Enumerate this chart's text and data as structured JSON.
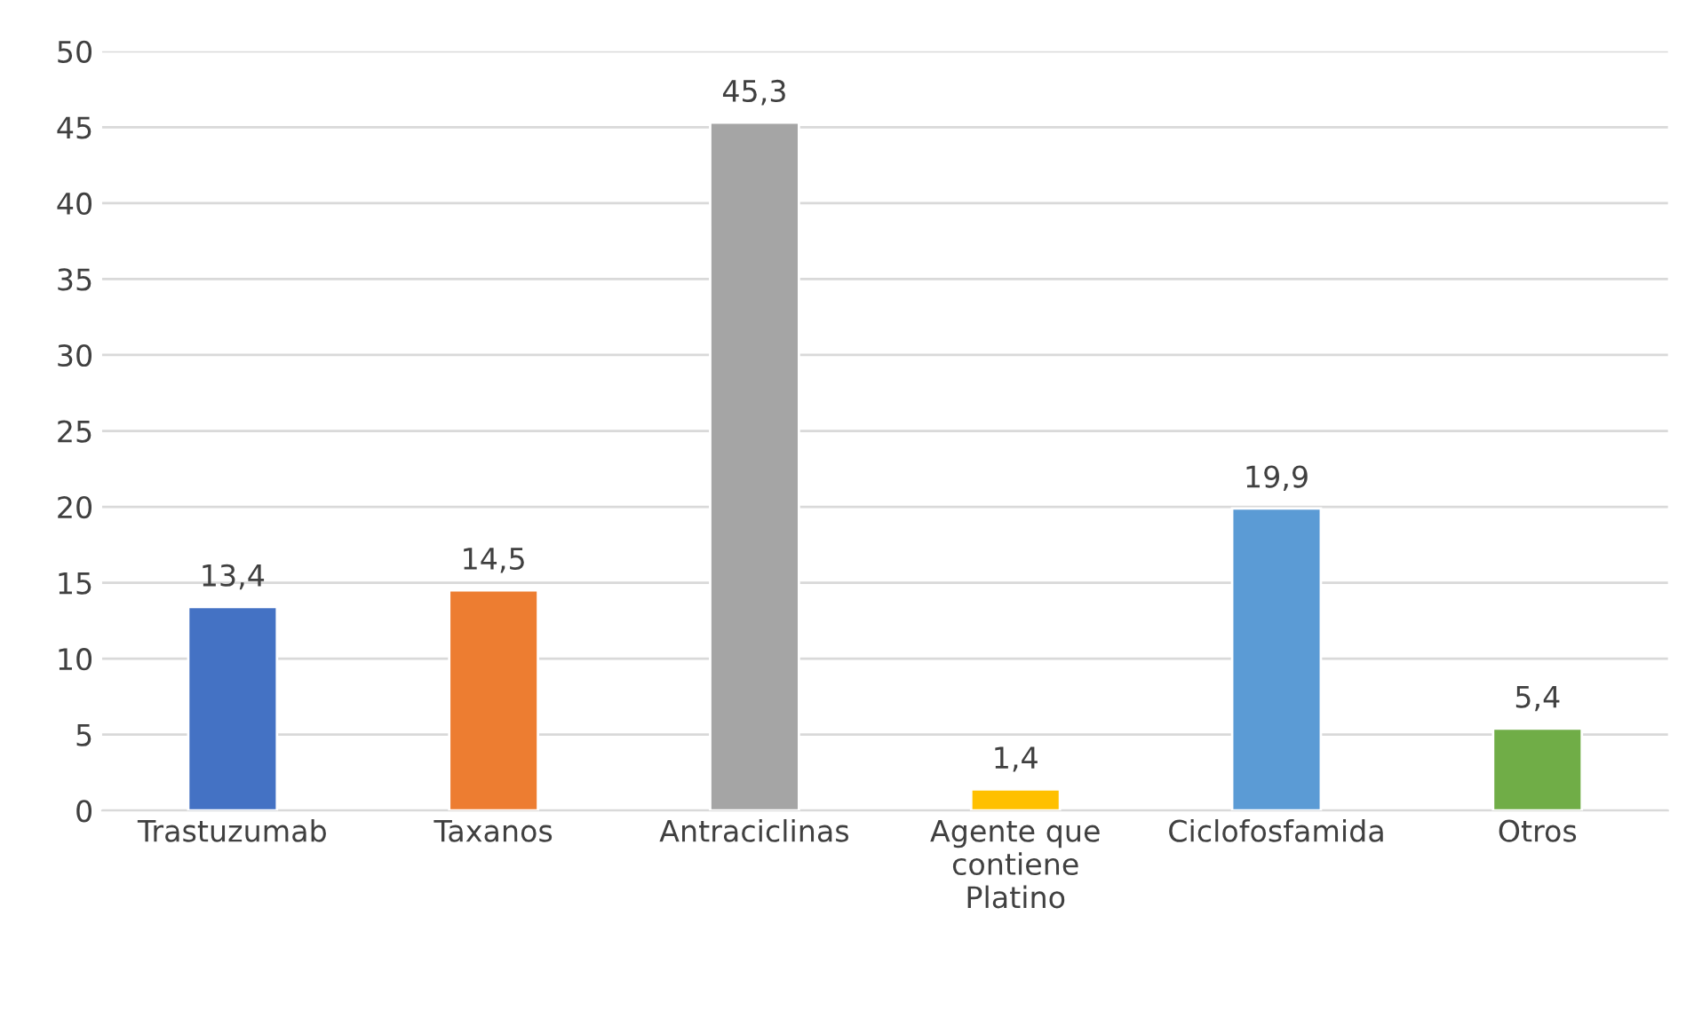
{
  "chart_data": {
    "type": "bar",
    "categories": [
      "Trastuzumab",
      "Taxanos",
      "Antraciclinas",
      "Agente que\ncontiene\nPlatino",
      "Ciclofosfamida",
      "Otros"
    ],
    "values": [
      13.4,
      14.5,
      45.3,
      1.4,
      19.9,
      5.4
    ],
    "colors": [
      "#4472c4",
      "#ed7d31",
      "#a5a5a5",
      "#ffc000",
      "#5b9bd5",
      "#70ad47"
    ],
    "value_labels": [
      "13,4",
      "14,5",
      "45,3",
      "1,4",
      "19,9",
      "5,4"
    ],
    "ylim": [
      0,
      50
    ],
    "yticks": [
      0,
      5,
      10,
      15,
      20,
      25,
      30,
      35,
      40,
      45,
      50
    ],
    "grid": "y",
    "legend": false
  }
}
